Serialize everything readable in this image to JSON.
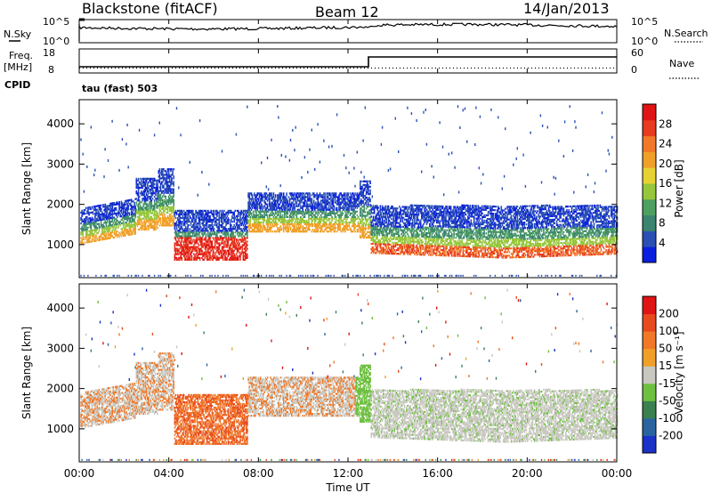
{
  "header": {
    "station": "Blackstone (fitACF)",
    "beam": "Beam 12",
    "date": "14/Jan/2013"
  },
  "noise_panel": {
    "left_label": "N.Sky",
    "left_ticks": [
      "10^5",
      "10^0"
    ],
    "right_ticks": [
      "10^5",
      "10^0"
    ],
    "right_label": "N.Search"
  },
  "freq_panel": {
    "left_label_line1": "Freq.",
    "left_label_line2": "[MHz]",
    "left_ticks": [
      "18",
      "8"
    ],
    "right_ticks": [
      "60",
      "0"
    ],
    "right_label": "Nave",
    "cpid_label": "CPID",
    "cpid_text": "tau (fast) 503"
  },
  "colors": {
    "trace": "#000000",
    "frame": "#000000"
  },
  "chart_data": [
    {
      "type": "heatmap",
      "name": "power",
      "ylabel": "Slant Range [km]",
      "xlabel": "",
      "ylim": [
        180,
        4600
      ],
      "xlim_hours": [
        0,
        24
      ],
      "y_ticks": [
        "4000",
        "3000",
        "2000",
        "1000"
      ],
      "y_tick_values": [
        4000,
        3000,
        2000,
        1000
      ],
      "colorbar": {
        "label": "Power [dB]",
        "ticks": [
          "28",
          "24",
          "20",
          "16",
          "12",
          "8",
          "4"
        ],
        "tick_values": [
          28,
          24,
          20,
          16,
          12,
          8,
          4
        ],
        "range": [
          0,
          30
        ],
        "colors": [
          "#0a1fe0",
          "#2a50b4",
          "#3a8470",
          "#4ea060",
          "#96c63c",
          "#e6d232",
          "#f0a028",
          "#f07828",
          "#e83a1e",
          "#e01414"
        ]
      }
    },
    {
      "type": "heatmap",
      "name": "velocity",
      "ylabel": "Slant Range [km]",
      "xlabel": "Time UT",
      "ylim": [
        180,
        4600
      ],
      "xlim_hours": [
        0,
        24
      ],
      "y_ticks": [
        "4000",
        "3000",
        "2000",
        "1000"
      ],
      "y_tick_values": [
        4000,
        3000,
        2000,
        1000
      ],
      "x_ticks": [
        "00:00",
        "04:00",
        "08:00",
        "12:00",
        "16:00",
        "20:00",
        "00:00"
      ],
      "x_tick_hours": [
        0,
        4,
        8,
        12,
        16,
        20,
        24
      ],
      "colorbar": {
        "label": "Velocity [m s⁻¹]",
        "ticks": [
          "200",
          "100",
          "50",
          "15",
          "-15",
          "-50",
          "-100",
          "-200"
        ],
        "tick_values": [
          200,
          100,
          50,
          15,
          -15,
          -50,
          -100,
          -200
        ],
        "colors": [
          "#1a32c8",
          "#2a64a0",
          "#3a8050",
          "#6ec040",
          "#c8c8c0",
          "#f0a028",
          "#f07828",
          "#e84a1e",
          "#e01414"
        ]
      }
    }
  ]
}
